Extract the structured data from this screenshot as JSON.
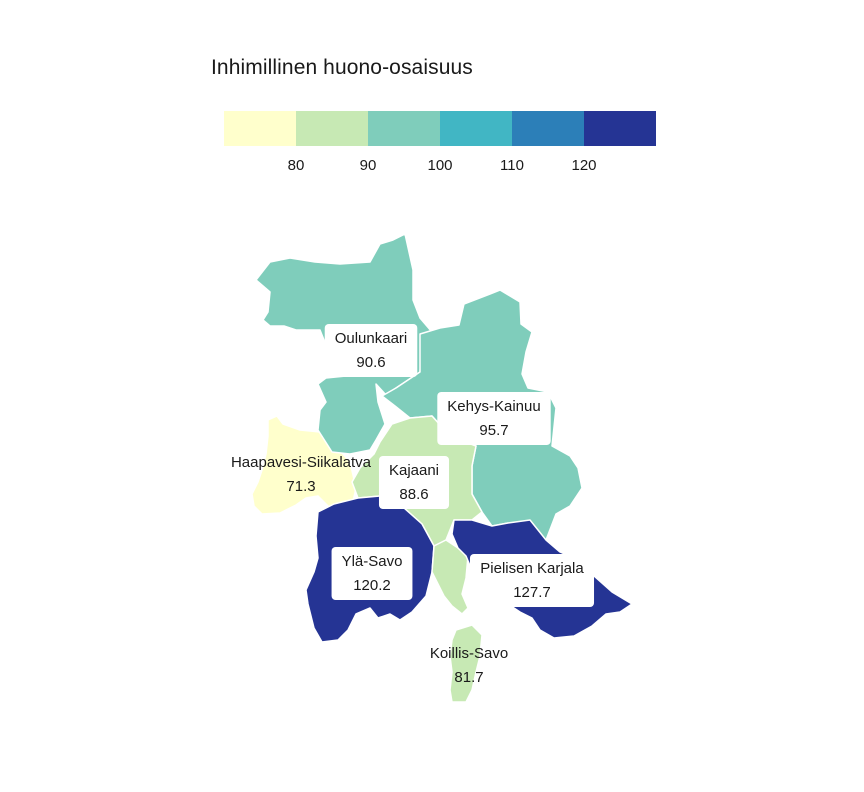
{
  "legend": {
    "title": "Inhimillinen huono-osaisuus",
    "bins": [
      {
        "color": "#ffffcc"
      },
      {
        "color": "#c7e9b4"
      },
      {
        "color": "#7fcdbb"
      },
      {
        "color": "#41b6c4"
      },
      {
        "color": "#2c7fb8"
      },
      {
        "color": "#253494"
      }
    ],
    "ticks": [
      "80",
      "90",
      "100",
      "110",
      "120"
    ]
  },
  "regions": [
    {
      "id": "oulunkaari",
      "name": "Oulunkaari",
      "value": "90.6",
      "color": "#7fcdbb"
    },
    {
      "id": "kehys-kainuu",
      "name": "Kehys-Kainuu",
      "value": "95.7",
      "color": "#7fcdbb"
    },
    {
      "id": "haapavesi-siikalatva",
      "name": "Haapavesi-Siikalatva",
      "value": "71.3",
      "color": "#ffffcc"
    },
    {
      "id": "kajaani",
      "name": "Kajaani",
      "value": "88.6",
      "color": "#c7e9b4"
    },
    {
      "id": "yla-savo",
      "name": "Ylä-Savo",
      "value": "120.2",
      "color": "#253494"
    },
    {
      "id": "pielisen-karjala",
      "name": "Pielisen Karjala",
      "value": "127.7",
      "color": "#253494"
    },
    {
      "id": "koillis-savo",
      "name": "Koillis-Savo",
      "value": "81.7",
      "color": "#c7e9b4"
    }
  ]
}
